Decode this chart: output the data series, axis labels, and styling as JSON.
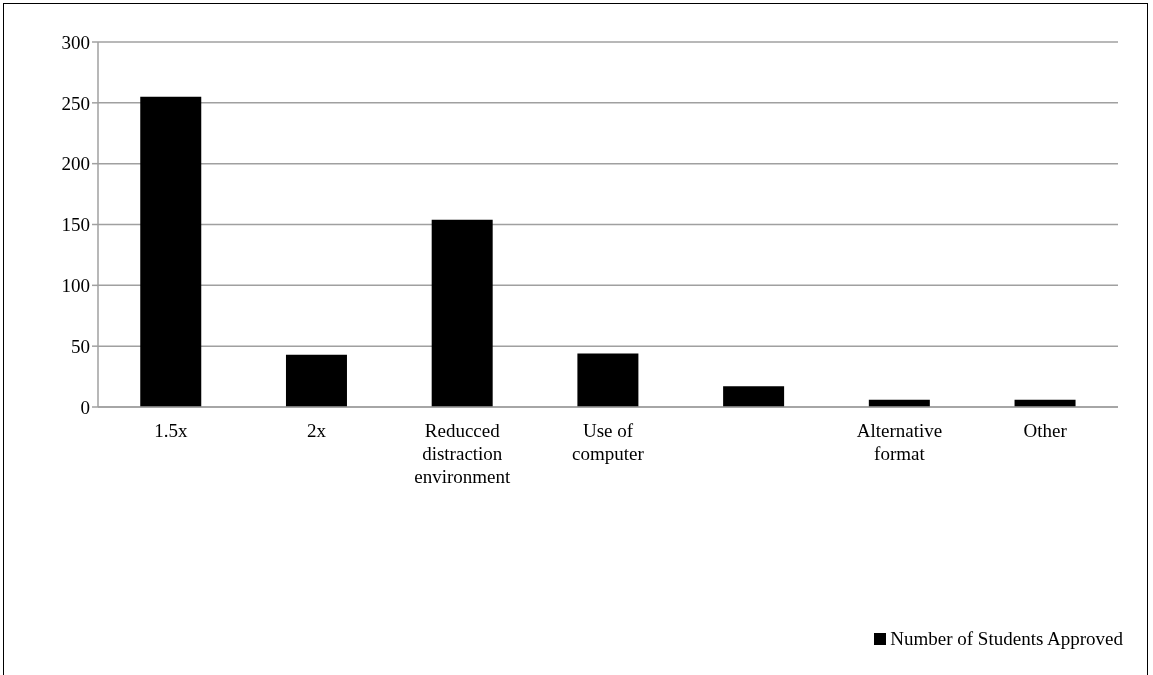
{
  "chart_data": {
    "type": "bar",
    "categories": [
      "1.5x",
      "2x",
      "Reducced distraction environment",
      "Use of computer",
      null,
      "Alternative format",
      "Other"
    ],
    "series": [
      {
        "name": "Number of Students Approved",
        "color": "#000000",
        "values": [
          255,
          43,
          154,
          44,
          17,
          6,
          6
        ]
      }
    ],
    "ylim": [
      0,
      300
    ],
    "yticks": [
      0,
      50,
      100,
      150,
      200,
      250,
      300
    ],
    "grid": "y",
    "legend": "bottom right"
  }
}
